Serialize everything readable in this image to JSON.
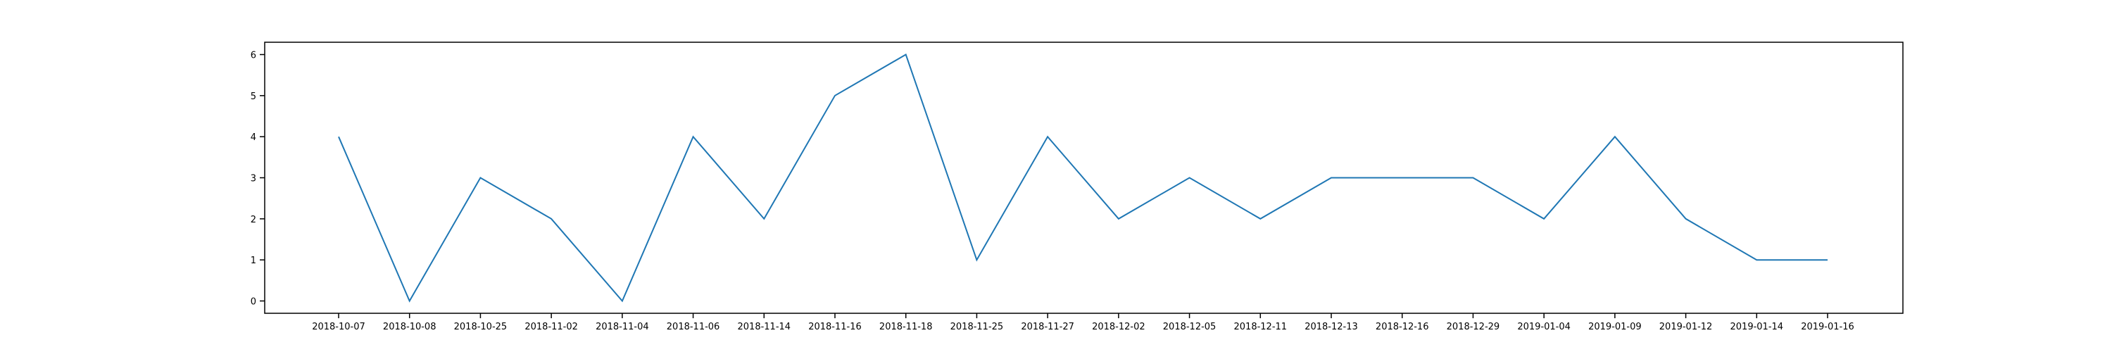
{
  "chart_data": {
    "type": "line",
    "title": "",
    "xlabel": "",
    "ylabel": "",
    "categories": [
      "2018-10-07",
      "2018-10-08",
      "2018-10-25",
      "2018-11-02",
      "2018-11-04",
      "2018-11-06",
      "2018-11-14",
      "2018-11-16",
      "2018-11-18",
      "2018-11-25",
      "2018-11-27",
      "2018-12-02",
      "2018-12-05",
      "2018-12-11",
      "2018-12-13",
      "2018-12-16",
      "2018-12-29",
      "2019-01-04",
      "2019-01-09",
      "2019-01-12",
      "2019-01-14",
      "2019-01-16"
    ],
    "series": [
      {
        "values": [
          4,
          0,
          3,
          2,
          0,
          4,
          2,
          5,
          6,
          1,
          4,
          2,
          3,
          2,
          3,
          3,
          3,
          2,
          4,
          2,
          1,
          1
        ],
        "color": "#1f77b4"
      }
    ],
    "ylim": [
      -0.3,
      6.3
    ],
    "yticks": [
      0,
      1,
      2,
      3,
      4,
      5,
      6
    ],
    "grid": false,
    "legend": "none"
  }
}
